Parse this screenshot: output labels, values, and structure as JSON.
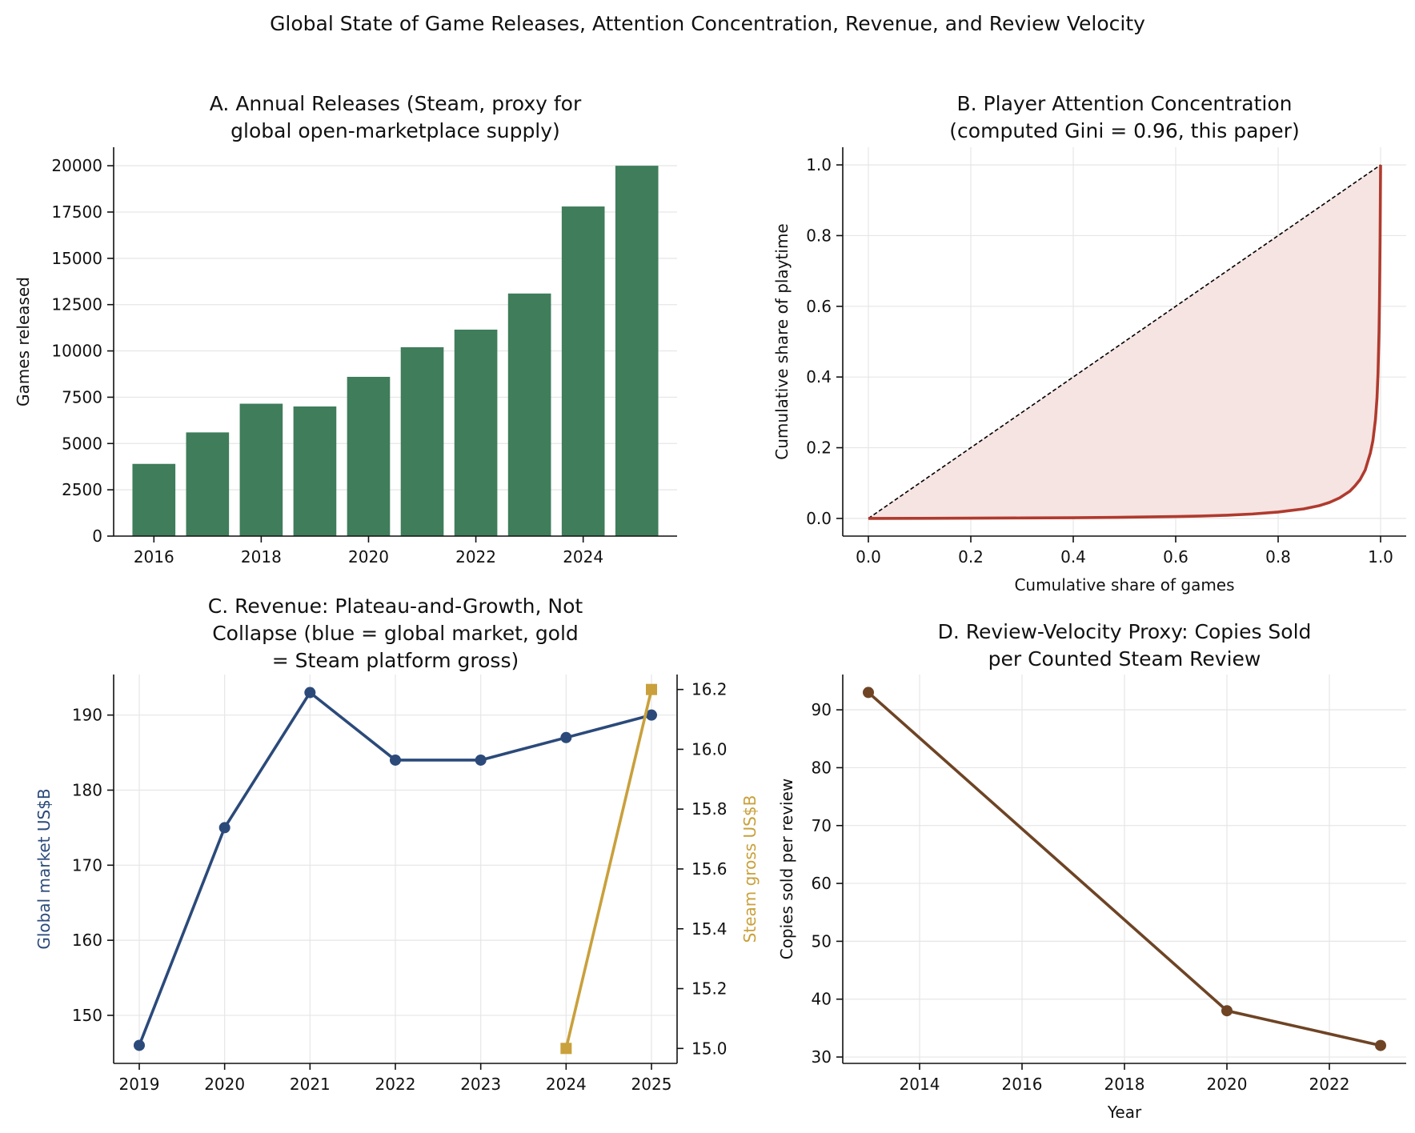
{
  "figure": {
    "title": "Global State of Game Releases, Attention Concentration, Revenue, and Review Velocity"
  },
  "chart_data": [
    {
      "id": "A",
      "type": "bar",
      "title": [
        "A. Annual Releases (Steam, proxy for",
        "global open-marketplace supply)"
      ],
      "xlabel": "",
      "ylabel": "Games released",
      "x": [
        2016,
        2017,
        2018,
        2019,
        2020,
        2021,
        2022,
        2023,
        2024,
        2025
      ],
      "values": [
        3900,
        5600,
        7150,
        7000,
        8600,
        10200,
        11150,
        13100,
        17800,
        20000
      ],
      "xlim": [
        2015.25,
        2025.75
      ],
      "ylim": [
        0,
        21000
      ],
      "xticks": [
        2016,
        2018,
        2020,
        2022,
        2024
      ],
      "yticks": [
        0,
        2500,
        5000,
        7500,
        10000,
        12500,
        15000,
        17500,
        20000
      ],
      "color": "#3f7d5b",
      "grid": "y"
    },
    {
      "id": "B",
      "type": "line",
      "title": [
        "B. Player Attention Concentration",
        "(computed Gini = 0.96, this paper)"
      ],
      "xlabel": "Cumulative share of games",
      "ylabel": "Cumulative share of playtime",
      "xlim": [
        -0.05,
        1.05
      ],
      "ylim": [
        -0.05,
        1.05
      ],
      "xticks": [
        0.0,
        0.2,
        0.4,
        0.6,
        0.8,
        1.0
      ],
      "yticks": [
        0.0,
        0.2,
        0.4,
        0.6,
        0.8,
        1.0
      ],
      "series": [
        {
          "role": "lorenz",
          "x": [
            0,
            0.1,
            0.2,
            0.3,
            0.4,
            0.5,
            0.6,
            0.65,
            0.7,
            0.75,
            0.8,
            0.85,
            0.88,
            0.9,
            0.92,
            0.94,
            0.95,
            0.96,
            0.97,
            0.98,
            0.985,
            0.99,
            0.993,
            0.995,
            0.997,
            0.998,
            0.999,
            1.0
          ],
          "y": [
            0,
            0.0003,
            0.0007,
            0.0013,
            0.002,
            0.0033,
            0.0052,
            0.0068,
            0.009,
            0.0125,
            0.018,
            0.027,
            0.036,
            0.045,
            0.058,
            0.077,
            0.092,
            0.11,
            0.137,
            0.185,
            0.22,
            0.28,
            0.34,
            0.41,
            0.53,
            0.63,
            0.78,
            1.0
          ],
          "color": "#b03a2e"
        },
        {
          "role": "equality",
          "x": [
            0,
            1
          ],
          "y": [
            0,
            1
          ],
          "color": "#000000",
          "style": "dashed"
        }
      ],
      "fill_color": "#f6e4e2",
      "grid": "both"
    },
    {
      "id": "C",
      "type": "line",
      "title": [
        "C. Revenue: Plateau-and-Growth, Not",
        "Collapse (blue = global market, gold",
        "= Steam platform gross)"
      ],
      "xlabel": "",
      "ylabel": "Global market US$B",
      "ylabel_right": "Steam gross US$B",
      "xlim": [
        2018.7,
        2025.3
      ],
      "ylim": [
        143.6,
        195.4
      ],
      "ylim_right": [
        14.95,
        16.25
      ],
      "xticks": [
        2019,
        2020,
        2021,
        2022,
        2023,
        2024,
        2025
      ],
      "yticks": [
        150,
        160,
        170,
        180,
        190
      ],
      "yticks_right": [
        "15.0",
        "15.2",
        "15.4",
        "15.6",
        "15.8",
        "16.0",
        "16.2"
      ],
      "series": [
        {
          "axis": "left",
          "x": [
            2019,
            2020,
            2021,
            2022,
            2023,
            2024,
            2025
          ],
          "y": [
            146,
            175,
            193,
            184,
            184,
            187,
            190
          ],
          "color": "#2b4a7a",
          "marker": "circle"
        },
        {
          "axis": "right",
          "x": [
            2024,
            2025
          ],
          "y": [
            15.0,
            16.2
          ],
          "color": "#c9a03b",
          "marker": "square"
        }
      ],
      "grid": "both"
    },
    {
      "id": "D",
      "type": "line",
      "title": [
        "D. Review-Velocity Proxy: Copies Sold",
        "per Counted Steam Review"
      ],
      "xlabel": "Year",
      "ylabel": "Copies sold per review",
      "xlim": [
        2012.5,
        2023.5
      ],
      "ylim": [
        28.9,
        96.1
      ],
      "xticks": [
        2014,
        2016,
        2018,
        2020,
        2022
      ],
      "yticks": [
        30,
        40,
        50,
        60,
        70,
        80,
        90
      ],
      "series": [
        {
          "x": [
            2013,
            2020,
            2023
          ],
          "y": [
            93,
            38,
            32
          ],
          "color": "#6e4425",
          "marker": "circle"
        }
      ],
      "grid": "both"
    }
  ]
}
